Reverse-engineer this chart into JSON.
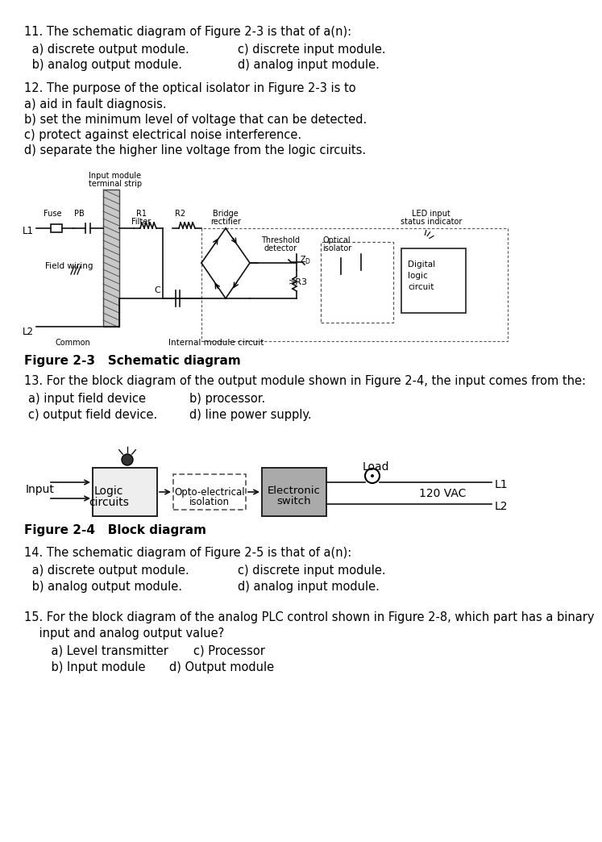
{
  "bg_color": "#ffffff",
  "fig_width": 6.71,
  "fig_height": 10.24,
  "q11_text": "11. The schematic diagram of Figure 2-3 is that of a(n):",
  "q11_a": " a) discrete output module.",
  "q11_c": "c) discrete input module.",
  "q11_b": " b) analog output module.",
  "q11_d": "d) analog input module.",
  "q12_text": "12. The purpose of the optical isolator in Figure 2-3 is to",
  "q12_a": "a) aid in fault diagnosis.",
  "q12_b": "b) set the minimum level of voltage that can be detected.",
  "q12_c": "c) protect against electrical noise interference.",
  "q12_d": "d) separate the higher line voltage from the logic circuits.",
  "fig23_caption": "Figure 2-3   Schematic diagram",
  "q13_text": "13. For the block diagram of the output module shown in Figure 2-4, the input comes from the:",
  "q13_a": "a) input field device",
  "q13_b": "b) processor.",
  "q13_c": "c) output field device.",
  "q13_d": "d) line power supply.",
  "fig24_caption": "Figure 2-4   Block diagram",
  "q14_text": "14. The schematic diagram of Figure 2-5 is that of a(n):",
  "q14_a": " a) discrete output module.",
  "q14_c": "c) discrete input module.",
  "q14_b": " b) analog output module.",
  "q14_d": "d) analog input module.",
  "q15_text": "15. For the block diagram of the analog PLC control shown in Figure 2-8, which part has a binary",
  "q15_text2": "    input and analog output value?",
  "q15_a": "    a) Level transmitter",
  "q15_c": "c) Processor",
  "q15_b": "    b) Input module",
  "q15_dd": "d) Output module"
}
